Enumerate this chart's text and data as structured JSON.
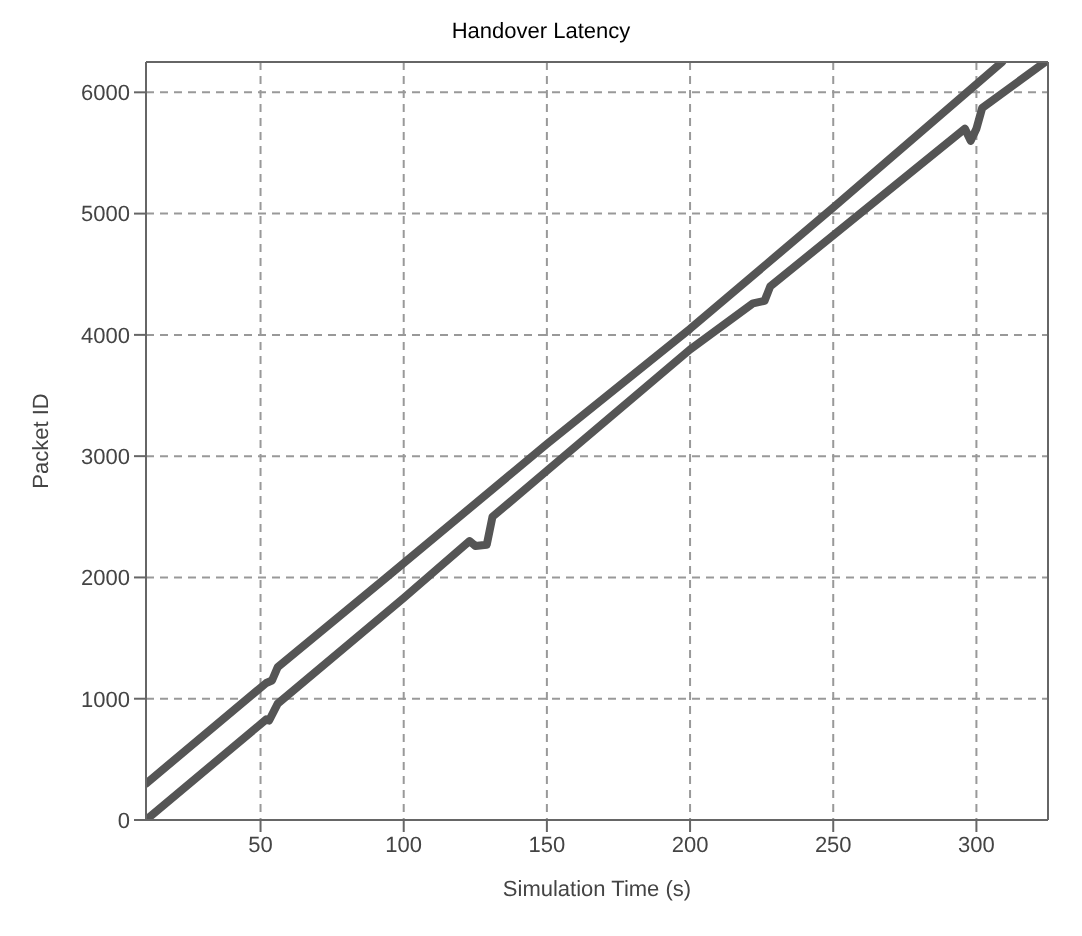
{
  "chart_data": {
    "type": "line",
    "title": "Handover Latency",
    "xlabel": "Simulation Time (s)",
    "ylabel": "Packet ID",
    "xlim": [
      10,
      325
    ],
    "ylim": [
      0,
      6250
    ],
    "xticks": [
      50,
      100,
      150,
      200,
      250,
      300
    ],
    "yticks": [
      0,
      1000,
      2000,
      3000,
      4000,
      5000,
      6000
    ],
    "grid": true,
    "line_style": "solid",
    "marker": "none",
    "series": [
      {
        "color": "#555555",
        "x": [
          10,
          52,
          54,
          56,
          94,
          150,
          200,
          250,
          309
        ],
        "values": [
          300,
          1130,
          1150,
          1260,
          2000,
          3100,
          4050,
          5050,
          6250
        ]
      },
      {
        "color": "#555555",
        "x": [
          10,
          52,
          53,
          56,
          100,
          123,
          125,
          129,
          131,
          150,
          200,
          222,
          226,
          228,
          296,
          298,
          300,
          302,
          324
        ],
        "values": [
          0,
          830,
          820,
          960,
          1830,
          2300,
          2260,
          2270,
          2500,
          2880,
          3880,
          4260,
          4280,
          4400,
          5700,
          5600,
          5700,
          5870,
          6250
        ]
      }
    ]
  }
}
